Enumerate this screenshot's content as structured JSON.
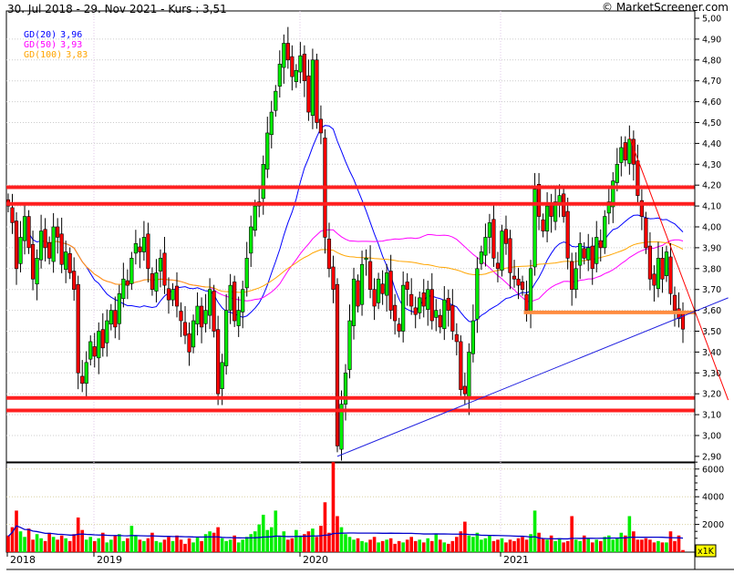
{
  "header": {
    "title": "30. Jul 2018 - 29. Nov 2021 - Kurs : 3,51",
    "copyright": "© MarketScreener.com"
  },
  "legend": [
    {
      "label": "GD(20)",
      "value": "3,96",
      "color": "#0000ff"
    },
    {
      "label": "GD(50)",
      "value": "3,93",
      "color": "#ff00ff"
    },
    {
      "label": "GD(100)",
      "value": "3,83",
      "color": "#ffa500"
    }
  ],
  "chart_data": {
    "type": "candlestick",
    "price_axis": {
      "range": [
        2.9,
        5.0
      ],
      "ticks": [
        "2,90",
        "3,00",
        "3,10",
        "3,20",
        "3,30",
        "3,40",
        "3,50",
        "3,60",
        "3,70",
        "3,80",
        "3,90",
        "4,00",
        "4,10",
        "4,20",
        "4,30",
        "4,40",
        "4,50",
        "4,60",
        "4,70",
        "4,80",
        "4,90",
        "5,00"
      ]
    },
    "volume_axis": {
      "range": [
        0,
        6500
      ],
      "ticks": [
        "2000",
        "4000",
        "6000"
      ],
      "unit_label": "x1K"
    },
    "x_labels": [
      "2018",
      "2019",
      "2020",
      "2021"
    ],
    "close": [
      4.1,
      4.02,
      3.8,
      3.95,
      4.05,
      3.9,
      3.75,
      3.85,
      3.98,
      3.9,
      3.85,
      4.0,
      3.95,
      3.82,
      3.88,
      3.78,
      3.7,
      3.3,
      3.25,
      3.35,
      3.45,
      3.38,
      3.5,
      3.42,
      3.55,
      3.6,
      3.52,
      3.68,
      3.75,
      3.72,
      3.85,
      3.92,
      3.88,
      3.95,
      3.8,
      3.7,
      3.78,
      3.85,
      3.72,
      3.65,
      3.7,
      3.62,
      3.55,
      3.48,
      3.4,
      3.55,
      3.62,
      3.52,
      3.6,
      3.7,
      3.5,
      3.2,
      3.35,
      3.6,
      3.72,
      3.55,
      3.6,
      3.7,
      3.85,
      4.0,
      4.1,
      4.12,
      4.3,
      4.45,
      4.55,
      4.65,
      4.78,
      4.88,
      4.8,
      4.72,
      4.75,
      4.82,
      4.7,
      4.55,
      4.8,
      4.5,
      4.45,
      3.95,
      3.8,
      3.7,
      2.95,
      3.15,
      3.3,
      3.55,
      3.75,
      3.62,
      3.82,
      3.85,
      3.7,
      3.62,
      3.75,
      3.68,
      3.78,
      3.6,
      3.55,
      3.5,
      3.72,
      3.7,
      3.62,
      3.58,
      3.66,
      3.62,
      3.7,
      3.55,
      3.6,
      3.52,
      3.65,
      3.6,
      3.5,
      3.45,
      3.22,
      3.2,
      3.4,
      3.55,
      3.8,
      3.88,
      3.95,
      4.02,
      3.85,
      3.8,
      3.98,
      3.92,
      3.78,
      3.75,
      3.72,
      3.7,
      3.6,
      3.8,
      4.18,
      4.05,
      3.98,
      4.1,
      4.05,
      4.12,
      4.15,
      4.05,
      3.85,
      3.7,
      3.8,
      3.92,
      3.85,
      3.9,
      3.8,
      3.95,
      3.9,
      4.05,
      4.12,
      4.22,
      4.3,
      4.38,
      4.32,
      4.42,
      4.3,
      4.15,
      4.05,
      3.9,
      3.75,
      3.72,
      3.85,
      3.75,
      3.88,
      3.68,
      3.6,
      3.56,
      3.51
    ],
    "volume": [
      1200,
      1800,
      3000,
      1500,
      1100,
      1700,
      900,
      1300,
      1000,
      800,
      1400,
      1100,
      900,
      1200,
      1000,
      800,
      1300,
      2500,
      1600,
      900,
      1100,
      800,
      1000,
      1400,
      700,
      900,
      1200,
      1300,
      800,
      1000,
      1900,
      1200,
      900,
      800,
      1000,
      1400,
      800,
      700,
      900,
      1100,
      800,
      1200,
      900,
      600,
      1000,
      700,
      1100,
      800,
      1300,
      1500,
      1400,
      1800,
      1000,
      800,
      900,
      1200,
      700,
      900,
      1100,
      1300,
      1500,
      2000,
      2700,
      1600,
      1800,
      3000,
      1200,
      1500,
      900,
      1000,
      1600,
      1200,
      1300,
      1500,
      1700,
      1100,
      1900,
      3600,
      1400,
      6500,
      2600,
      1800,
      1300,
      1100,
      900,
      1000,
      800,
      700,
      900,
      1100,
      700,
      800,
      900,
      1000,
      600,
      800,
      700,
      900,
      1100,
      800,
      900,
      700,
      1000,
      800,
      1300,
      900,
      700,
      600,
      800,
      1100,
      1500,
      2200,
      1200,
      1100,
      1400,
      900,
      1000,
      1200,
      800,
      900,
      1000,
      700,
      900,
      800,
      1000,
      1100,
      900,
      1300,
      3000,
      1400,
      1000,
      900,
      1200,
      800,
      1000,
      700,
      800,
      2600,
      900,
      800,
      1200,
      1000,
      700,
      900,
      800,
      1100,
      1200,
      900,
      1000,
      1400,
      1200,
      2600,
      1500,
      900,
      900,
      1000,
      900,
      700,
      800,
      700,
      700,
      1500,
      800,
      1200,
      150
    ],
    "moving_averages": [
      {
        "name": "GD(20)",
        "period": 20,
        "color": "#0000ff"
      },
      {
        "name": "GD(50)",
        "period": 50,
        "color": "#ff00ff"
      },
      {
        "name": "GD(100)",
        "period": 100,
        "color": "#ffa500"
      }
    ],
    "horizontal_levels": [
      {
        "price": 4.19,
        "color": "#ff2020"
      },
      {
        "price": 4.11,
        "color": "#ff2020"
      },
      {
        "price": 3.18,
        "color": "#ff2020"
      },
      {
        "price": 3.12,
        "color": "#ff2020"
      },
      {
        "price": 3.59,
        "color": "#ff8c40",
        "from_index": 126
      }
    ],
    "trend_lines": [
      {
        "from": [
          80,
          2.9
        ],
        "to": [
          175,
          3.66
        ],
        "color": "#2020e0"
      },
      {
        "from": [
          151,
          4.43
        ],
        "to": [
          175,
          3.17
        ],
        "color": "#ff0000"
      }
    ],
    "colors": {
      "up": "#00ee00",
      "down": "#ff0000",
      "volume_average": "#0000cc"
    }
  }
}
